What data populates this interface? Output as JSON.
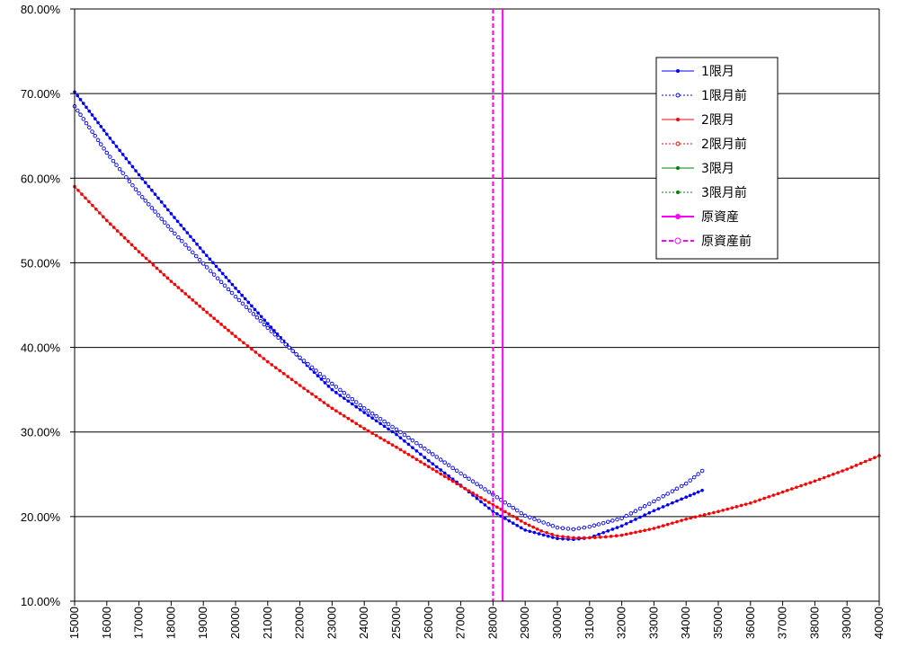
{
  "chart_data": {
    "type": "line",
    "title": "",
    "xlabel": "",
    "ylabel": "",
    "xlim": [
      15000,
      40000
    ],
    "ylim": [
      10,
      80
    ],
    "y_tick_format": "percent_2dp",
    "x_ticks": [
      15000,
      16000,
      17000,
      18000,
      19000,
      20000,
      21000,
      22000,
      23000,
      24000,
      25000,
      26000,
      27000,
      28000,
      29000,
      30000,
      31000,
      32000,
      33000,
      34000,
      35000,
      36000,
      37000,
      38000,
      39000,
      40000
    ],
    "x_tick_labels": [
      "15000",
      "16000",
      "17000",
      "18000",
      "19000",
      "20000",
      "21000",
      "22000",
      "23000",
      "24000",
      "25000",
      "26000",
      "27000",
      "28000",
      "29000",
      "30000",
      "31000",
      "32000",
      "33000",
      "34000",
      "35000",
      "36000",
      "37000",
      "38000",
      "39000",
      "40000"
    ],
    "y_ticks": [
      10,
      20,
      30,
      40,
      50,
      60,
      70,
      80
    ],
    "y_tick_labels": [
      "10.00%",
      "20.00%",
      "30.00%",
      "40.00%",
      "50.00%",
      "60.00%",
      "70.00%",
      "80.00%"
    ],
    "grid": "horizontal",
    "legend_position": "upper-right",
    "series": [
      {
        "name": "1限月",
        "color": "#0000ff",
        "style": "solid",
        "marker": "filled",
        "x": [
          15000,
          16000,
          17000,
          18000,
          19000,
          20000,
          21000,
          22000,
          23000,
          24000,
          25000,
          26000,
          27000,
          28000,
          29000,
          30000,
          30500,
          31000,
          32000,
          33000,
          34000,
          34500
        ],
        "y": [
          70.2,
          65.2,
          60.4,
          55.8,
          51.3,
          47.0,
          42.8,
          38.7,
          35.0,
          32.3,
          29.7,
          26.6,
          23.7,
          20.6,
          18.4,
          17.4,
          17.3,
          17.5,
          18.9,
          20.7,
          22.3,
          23.1
        ]
      },
      {
        "name": "1限月前",
        "color": "#0000ff",
        "style": "dotted",
        "marker": "hollow",
        "x": [
          15000,
          16000,
          17000,
          18000,
          19000,
          20000,
          21000,
          22000,
          23000,
          24000,
          25000,
          26000,
          27000,
          28000,
          29000,
          30000,
          30500,
          31000,
          32000,
          33000,
          34000,
          34500
        ],
        "y": [
          68.5,
          63.0,
          58.2,
          53.9,
          49.9,
          46.0,
          42.3,
          38.8,
          35.7,
          32.8,
          30.3,
          27.7,
          25.1,
          22.6,
          20.1,
          18.7,
          18.5,
          18.8,
          19.8,
          21.8,
          23.9,
          25.4
        ]
      },
      {
        "name": "2限月",
        "color": "#ff0000",
        "style": "solid",
        "marker": "filled",
        "x": [
          15000,
          16000,
          17000,
          18000,
          19000,
          20000,
          21000,
          22000,
          23000,
          24000,
          25000,
          26000,
          27000,
          28000,
          28500,
          29000,
          29500,
          30000,
          30500,
          31000,
          31500,
          32000,
          33000,
          34000,
          35000,
          36000,
          37000,
          38000,
          39000,
          40000
        ],
        "y": [
          59.0,
          55.0,
          51.3,
          47.8,
          44.5,
          41.3,
          38.3,
          35.5,
          32.8,
          30.4,
          28.2,
          25.9,
          23.6,
          21.4,
          20.3,
          19.2,
          18.3,
          17.7,
          17.5,
          17.5,
          17.6,
          17.8,
          18.6,
          19.7,
          20.6,
          21.6,
          22.9,
          24.2,
          25.6,
          27.2
        ]
      },
      {
        "name": "2限月前",
        "color": "#ff0000",
        "style": "dotted",
        "marker": "hollow",
        "x": [],
        "y": []
      },
      {
        "name": "3限月",
        "color": "#008000",
        "style": "solid",
        "marker": "filled",
        "x": [],
        "y": []
      },
      {
        "name": "3限月前",
        "color": "#008000",
        "style": "dotted",
        "marker": "filled",
        "x": [],
        "y": []
      },
      {
        "name": "原資産",
        "color": "#ff00ff",
        "style": "solid",
        "marker": "filled",
        "vertical_line_at": 28300
      },
      {
        "name": "原資産前",
        "color": "#ff00ff",
        "style": "dashed",
        "marker": "hollow",
        "vertical_line_at": 28000
      }
    ]
  }
}
